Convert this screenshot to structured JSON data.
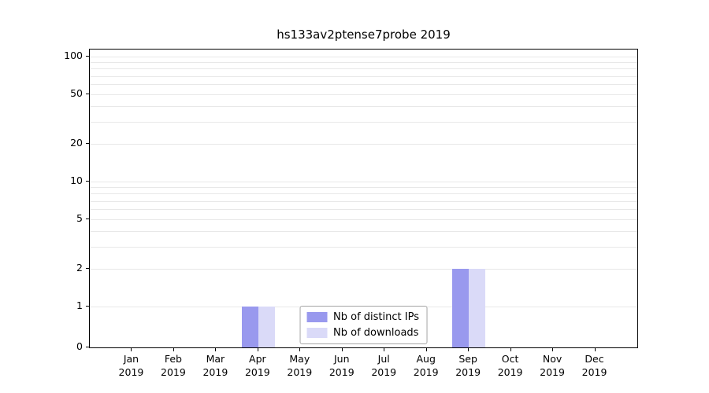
{
  "chart_data": {
    "type": "bar",
    "title": "hs133av2ptense7probe 2019",
    "categories": [
      "Jan 2019",
      "Feb 2019",
      "Mar 2019",
      "Apr 2019",
      "May 2019",
      "Jun 2019",
      "Jul 2019",
      "Aug 2019",
      "Sep 2019",
      "Oct 2019",
      "Nov 2019",
      "Dec 2019"
    ],
    "series": [
      {
        "name": "Nb of distinct IPs",
        "color": "#9999ee",
        "values": [
          0,
          0,
          0,
          1,
          0,
          0,
          0,
          0,
          2,
          0,
          0,
          0
        ]
      },
      {
        "name": "Nb of downloads",
        "color": "#dadaf8",
        "values": [
          0,
          0,
          0,
          1,
          0,
          0,
          0,
          0,
          2,
          0,
          0,
          0
        ]
      }
    ],
    "xlabel": "",
    "ylabel": "",
    "yscale": "symlog",
    "ylim": [
      0,
      100
    ],
    "y_ticks": [
      0,
      1,
      2,
      5,
      10,
      20,
      50,
      100
    ],
    "y_minor_ticks": [
      3,
      4,
      6,
      7,
      8,
      9,
      30,
      40,
      60,
      70,
      80,
      90
    ],
    "grid": true,
    "legend_position": "lower center"
  }
}
